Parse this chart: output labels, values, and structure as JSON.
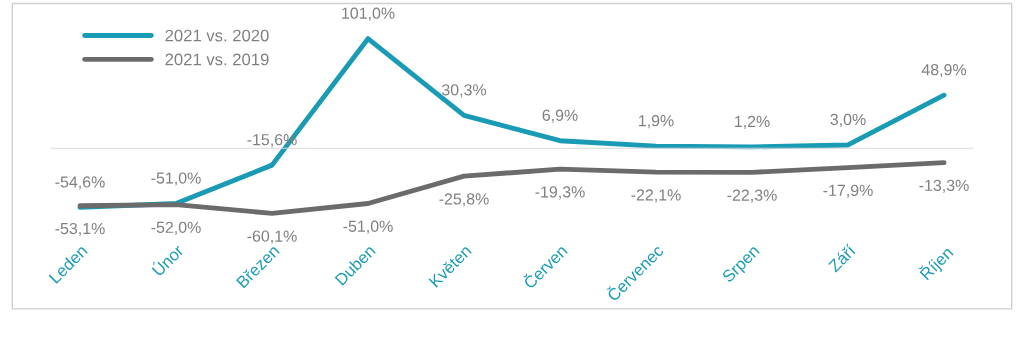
{
  "chart_data": {
    "type": "line",
    "categories": [
      "Leden",
      "Únor",
      "Březen",
      "Duben",
      "Květen",
      "Červen",
      "Červenec",
      "Srpen",
      "Září",
      "Říjen"
    ],
    "series": [
      {
        "name": "2021 vs. 2020",
        "color": "#1a9bb5",
        "values": [
          -54.6,
          -51.0,
          -15.6,
          101.0,
          30.3,
          6.9,
          1.9,
          1.2,
          3.0,
          48.9
        ],
        "value_labels": [
          "-54,6%",
          "-51,0%",
          "-15,6%",
          "101,0%",
          "30,3%",
          "6,9%",
          "1,9%",
          "1,2%",
          "3,0%",
          "48,9%"
        ]
      },
      {
        "name": "2021 vs. 2019",
        "color": "#6b6b6b",
        "values": [
          -53.1,
          -52.0,
          -60.1,
          -51.0,
          -25.8,
          -19.3,
          -22.1,
          -22.3,
          -17.9,
          -13.3
        ],
        "value_labels": [
          "-53,1%",
          "-52,0%",
          "-60,1%",
          "-51,0%",
          "-25,8%",
          "-19,3%",
          "-22,1%",
          "-22,3%",
          "-17,9%",
          "-13,3%"
        ]
      }
    ],
    "tick_labels": "x",
    "legend": "top left",
    "marker": "none",
    "line_style": "solid"
  }
}
